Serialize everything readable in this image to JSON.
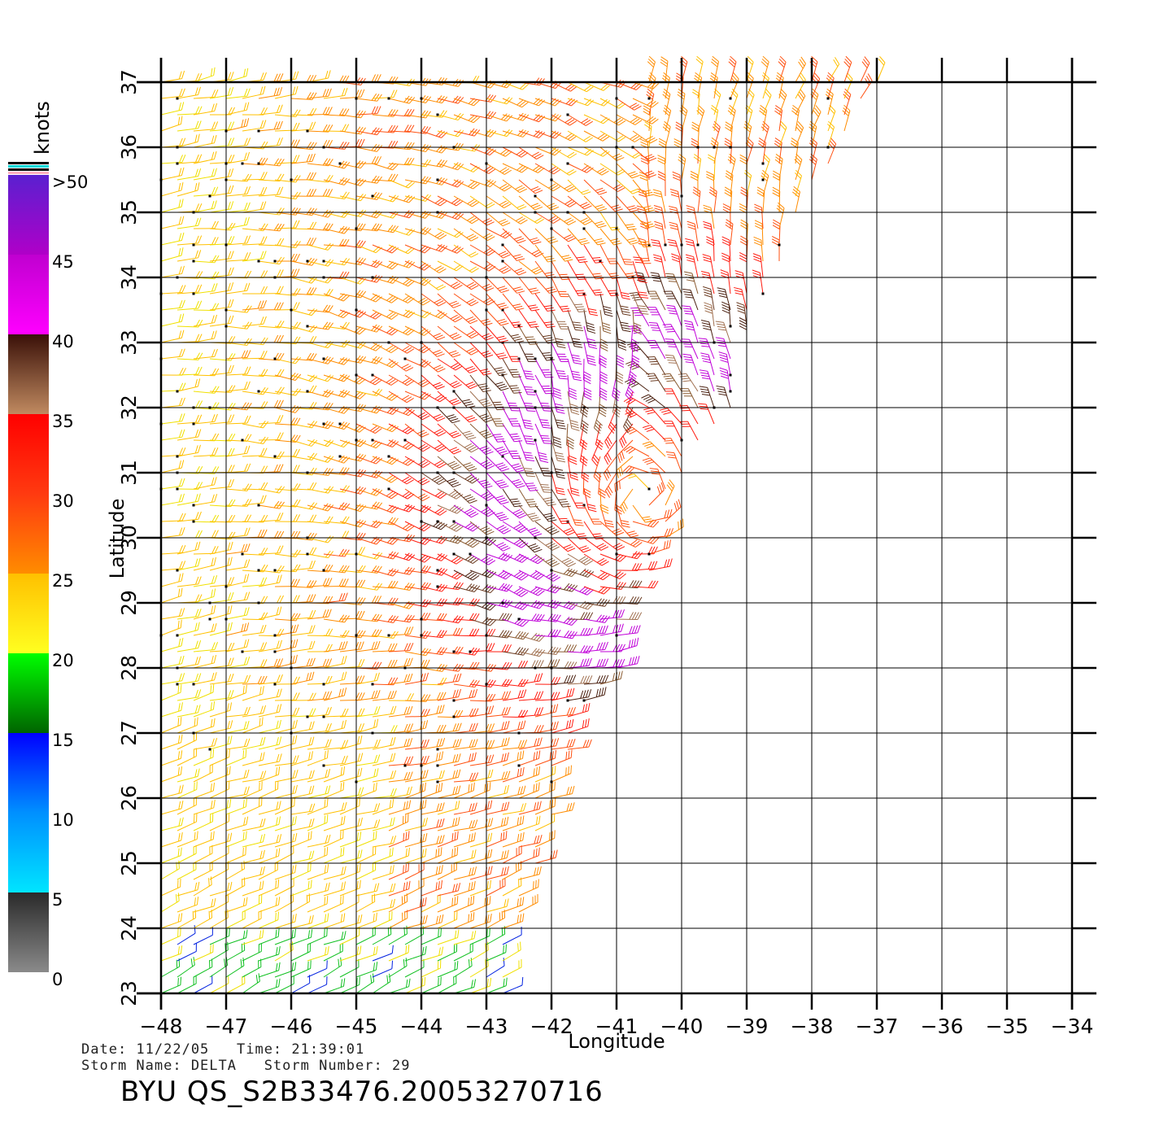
{
  "colorbar": {
    "unit_label": "knots",
    "tick_labels": [
      ">50",
      "45",
      "40",
      "35",
      "30",
      "25",
      "20",
      "15",
      "10",
      "5",
      "0"
    ],
    "tick_values": [
      50,
      45,
      40,
      35,
      30,
      25,
      20,
      15,
      10,
      5,
      0
    ]
  },
  "map": {
    "xlabel": "Longitude",
    "ylabel": "Latitude",
    "lon_ticks": [
      -48,
      -47,
      -46,
      -45,
      -44,
      -43,
      -42,
      -41,
      -40,
      -39,
      -38,
      -37,
      -36,
      -35,
      -34
    ],
    "lat_ticks": [
      23,
      24,
      25,
      26,
      27,
      28,
      29,
      30,
      31,
      32,
      33,
      34,
      35,
      36,
      37
    ],
    "lon_range": [
      -48,
      -34
    ],
    "lat_range": [
      23,
      37
    ],
    "grid": true,
    "storm_center": {
      "lon": -40.6,
      "lat": 30.6
    }
  },
  "info": {
    "date_line": "Date: 11/22/05   Time: 21:39:01",
    "storm_line": "Storm Name: DELTA   Storm Number: 29",
    "product_id": "BYU QS_S2B33476.20053270716"
  }
}
